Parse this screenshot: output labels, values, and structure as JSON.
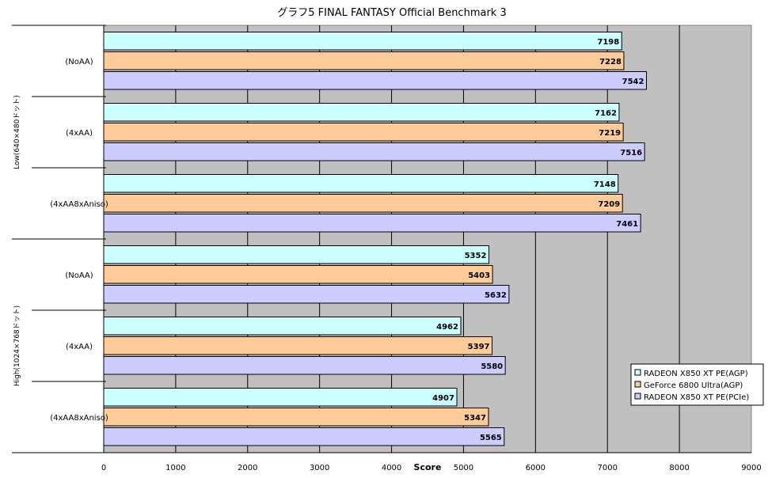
{
  "chart_data": {
    "type": "bar",
    "orientation": "horizontal",
    "title": "グラフ5  FINAL FANTASY Official Benchmark 3",
    "xlabel": "Score",
    "xlim": [
      0,
      9000
    ],
    "xticks": [
      0,
      1000,
      2000,
      3000,
      4000,
      5000,
      6000,
      7000,
      8000,
      9000
    ],
    "grid": true,
    "legend_position": "right",
    "groups": [
      {
        "label": "Low(640×480ドット)",
        "categories": [
          "(NoAA)",
          "(4xAA)",
          "(4xAA8xAniso)"
        ]
      },
      {
        "label": "High(1024×768ドット)",
        "categories": [
          "(NoAA)",
          "(4xAA)",
          "(4xAA8xAniso)"
        ]
      }
    ],
    "series": [
      {
        "name": "RADEON X850 XT PE(AGP)",
        "color": "#ccffff",
        "values": [
          7198,
          7162,
          7148,
          5352,
          4962,
          4907
        ]
      },
      {
        "name": "GeForce 6800 Ultra(AGP)",
        "color": "#ffcc99",
        "values": [
          7228,
          7219,
          7209,
          5403,
          5397,
          5347
        ]
      },
      {
        "name": "RADEON X850 XT PE(PCIe)",
        "color": "#ccccff",
        "values": [
          7542,
          7516,
          7461,
          5632,
          5580,
          5565
        ]
      }
    ],
    "plot_background": "#c0c0c0"
  }
}
